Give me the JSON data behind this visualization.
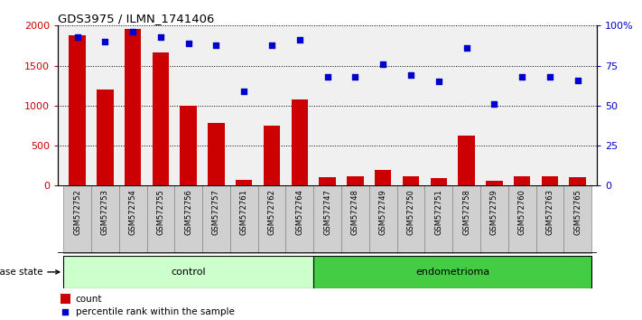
{
  "title": "GDS3975 / ILMN_1741406",
  "samples": [
    "GSM572752",
    "GSM572753",
    "GSM572754",
    "GSM572755",
    "GSM572756",
    "GSM572757",
    "GSM572761",
    "GSM572762",
    "GSM572764",
    "GSM572747",
    "GSM572748",
    "GSM572749",
    "GSM572750",
    "GSM572751",
    "GSM572758",
    "GSM572759",
    "GSM572760",
    "GSM572763",
    "GSM572765"
  ],
  "counts": [
    1880,
    1200,
    1960,
    1660,
    1000,
    780,
    75,
    750,
    1080,
    110,
    115,
    195,
    120,
    95,
    620,
    65,
    115,
    120,
    100
  ],
  "percentiles": [
    93,
    90,
    96,
    93,
    89,
    88,
    59,
    88,
    91,
    68,
    68,
    76,
    69,
    65,
    86,
    51,
    68,
    68,
    66
  ],
  "n_control": 9,
  "n_endometrioma": 10,
  "bar_color": "#cc0000",
  "dot_color": "#0000cc",
  "control_bg": "#ccffcc",
  "endometrioma_bg": "#44cc44",
  "xtick_bg": "#d0d0d0",
  "plot_bg": "#f0f0f0",
  "ylim_left": [
    0,
    2000
  ],
  "ylim_right": [
    0,
    100
  ],
  "yticks_left": [
    0,
    500,
    1000,
    1500,
    2000
  ],
  "ytick_labels_left": [
    "0",
    "500",
    "1000",
    "1500",
    "2000"
  ],
  "yticks_right": [
    0,
    25,
    50,
    75,
    100
  ],
  "ytick_labels_right": [
    "0",
    "25",
    "50",
    "75",
    "100%"
  ],
  "legend_count": "count",
  "legend_percentile": "percentile rank within the sample",
  "disease_state_label": "disease state",
  "control_label": "control",
  "endometrioma_label": "endometrioma"
}
